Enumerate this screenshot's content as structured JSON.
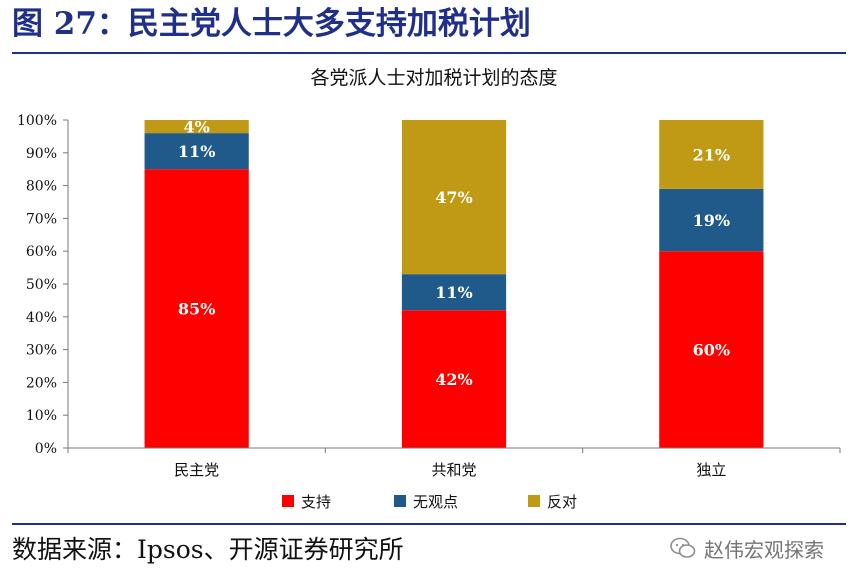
{
  "figure": {
    "title": "图 27：民主党人士大多支持加税计划",
    "source": "数据来源：Ipsos、开源证券研究所",
    "watermark": "赵伟宏观探索"
  },
  "colors": {
    "title_blue": "#1f2f8a",
    "support": "#ff0000",
    "no_opinion": "#1f5a8a",
    "oppose": "#c09a14",
    "axis": "#7a7a7a"
  },
  "chart_data": {
    "type": "bar",
    "stacked": true,
    "title": "各党派人士对加税计划的态度",
    "xlabel": "",
    "ylabel": "",
    "categories": [
      "民主党",
      "共和党",
      "独立"
    ],
    "ylim": [
      0,
      100
    ],
    "yticks": [
      "0%",
      "10%",
      "20%",
      "30%",
      "40%",
      "50%",
      "60%",
      "70%",
      "80%",
      "90%",
      "100%"
    ],
    "grid": false,
    "legend_position": "bottom",
    "series": [
      {
        "name": "支持",
        "values": [
          85,
          42,
          60
        ],
        "labels": [
          "85%",
          "42%",
          "60%"
        ],
        "color": "#ff0000"
      },
      {
        "name": "无观点",
        "values": [
          11,
          11,
          19
        ],
        "labels": [
          "11%",
          "11%",
          "19%"
        ],
        "color": "#1f5a8a"
      },
      {
        "name": "反对",
        "values": [
          4,
          47,
          21
        ],
        "labels": [
          "4%",
          "47%",
          "21%"
        ],
        "color": "#c09a14"
      }
    ]
  }
}
